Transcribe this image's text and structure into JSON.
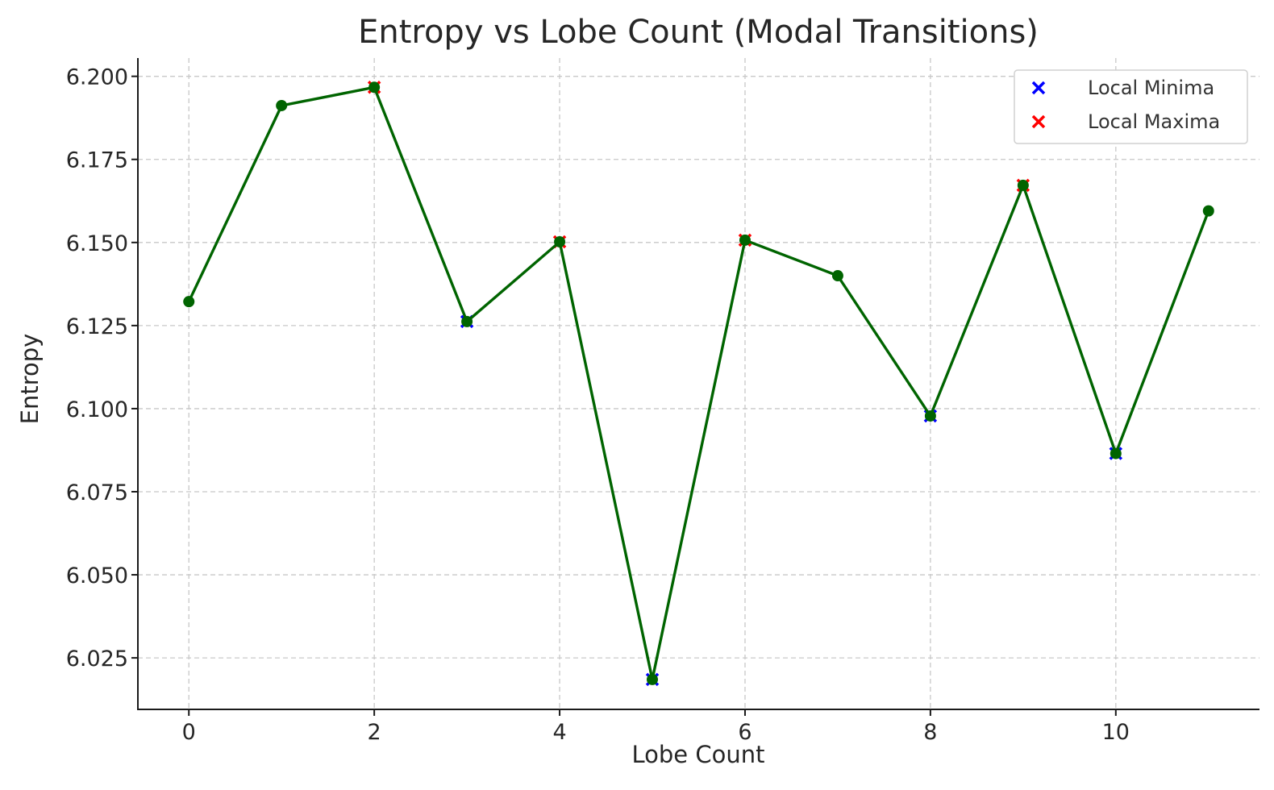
{
  "chart_data": {
    "type": "line",
    "title": "Entropy vs Lobe Count (Modal Transitions)",
    "xlabel": "Lobe Count",
    "ylabel": "Entropy",
    "xlim": [
      -0.55,
      11.55
    ],
    "ylim": [
      6.0095,
      6.2055
    ],
    "xticks": [
      0,
      2,
      4,
      6,
      8,
      10
    ],
    "xtick_labels": [
      "0",
      "2",
      "4",
      "6",
      "8",
      "10"
    ],
    "yticks": [
      6.025,
      6.05,
      6.075,
      6.1,
      6.125,
      6.15,
      6.175,
      6.2
    ],
    "ytick_labels": [
      "6.025",
      "6.050",
      "6.075",
      "6.100",
      "6.125",
      "6.150",
      "6.175",
      "6.200"
    ],
    "grid": true,
    "legend_position": "top-right",
    "series": [
      {
        "kind": "line",
        "color": "#006400",
        "x": [
          0,
          1,
          2,
          3,
          4,
          5,
          6,
          7,
          8,
          9,
          10,
          11
        ],
        "y": [
          6.1322,
          6.1912,
          6.1967,
          6.1262,
          6.1502,
          6.0185,
          6.1507,
          6.14,
          6.0978,
          6.1672,
          6.0865,
          6.1595
        ]
      },
      {
        "kind": "scatter",
        "marker": "x",
        "name": "Local Minima",
        "color": "#0000ff",
        "x": [
          3,
          5,
          8,
          10
        ],
        "y": [
          6.1262,
          6.0185,
          6.0978,
          6.0865
        ]
      },
      {
        "kind": "scatter",
        "marker": "x",
        "name": "Local Maxima",
        "color": "#ff0000",
        "x": [
          2,
          4,
          6,
          9
        ],
        "y": [
          6.1967,
          6.1502,
          6.1507,
          6.1672
        ]
      }
    ]
  }
}
